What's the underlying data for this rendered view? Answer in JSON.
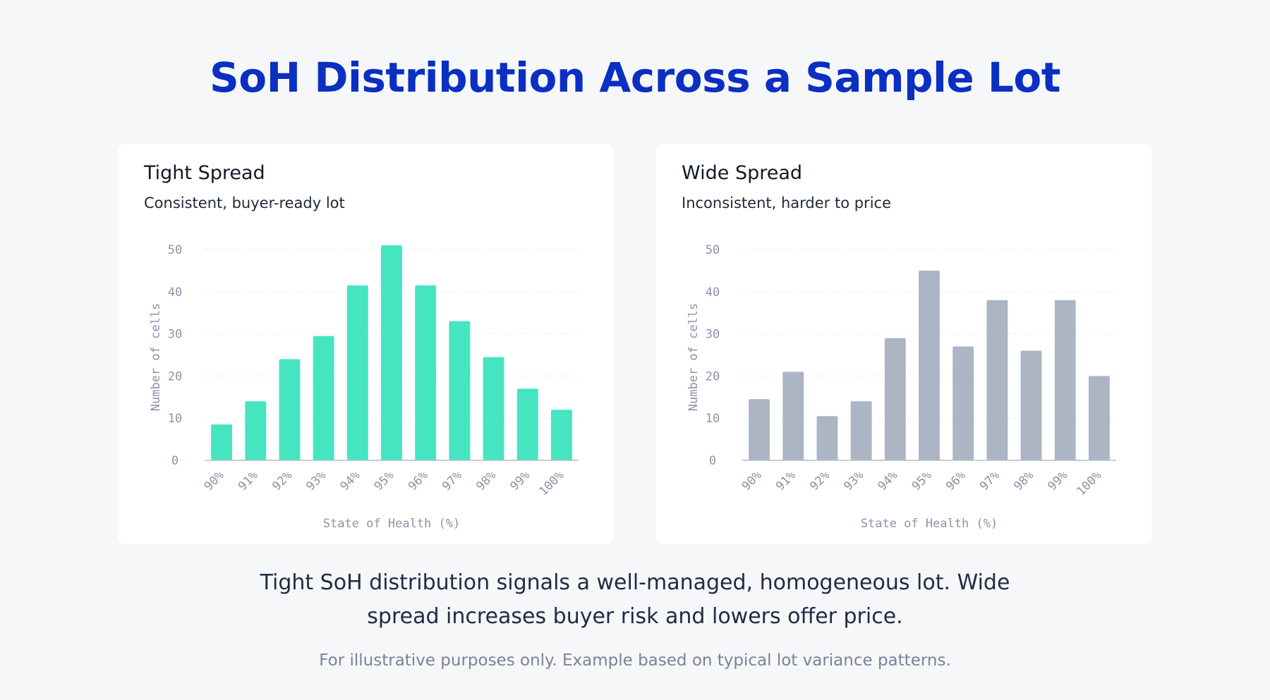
{
  "title": "SoH Distribution Across a Sample Lot",
  "caption": "Tight SoH distribution signals a well-managed, homogeneous lot. Wide spread increases buyer risk and lowers offer price.",
  "footnote": "For illustrative purposes only. Example based on typical lot variance patterns.",
  "chart_data": [
    {
      "type": "bar",
      "title": "Tight Spread",
      "subtitle": "Consistent, buyer-ready lot",
      "categories": [
        "90%",
        "91%",
        "92%",
        "93%",
        "94%",
        "95%",
        "96%",
        "97%",
        "98%",
        "99%",
        "100%"
      ],
      "values": [
        8.5,
        14,
        24,
        29.5,
        41.5,
        51,
        41.5,
        33,
        24.5,
        17,
        12
      ],
      "xlabel": "State of Health (%)",
      "ylabel": "Number of cells",
      "yticks": [
        0,
        10,
        20,
        30,
        40,
        50
      ],
      "ylim": [
        0,
        51
      ],
      "color": "#45e5c2",
      "grid": true
    },
    {
      "type": "bar",
      "title": "Wide Spread",
      "subtitle": "Inconsistent, harder to price",
      "categories": [
        "90%",
        "91%",
        "92%",
        "93%",
        "94%",
        "95%",
        "96%",
        "97%",
        "98%",
        "99%",
        "100%"
      ],
      "values": [
        14.5,
        21,
        10.5,
        14,
        29,
        45,
        27,
        38,
        26,
        38,
        20
      ],
      "xlabel": "State of Health (%)",
      "ylabel": "Number of cells",
      "yticks": [
        0,
        10,
        20,
        30,
        40,
        50
      ],
      "ylim": [
        0,
        51
      ],
      "color": "#abb5c4",
      "grid": true
    }
  ]
}
